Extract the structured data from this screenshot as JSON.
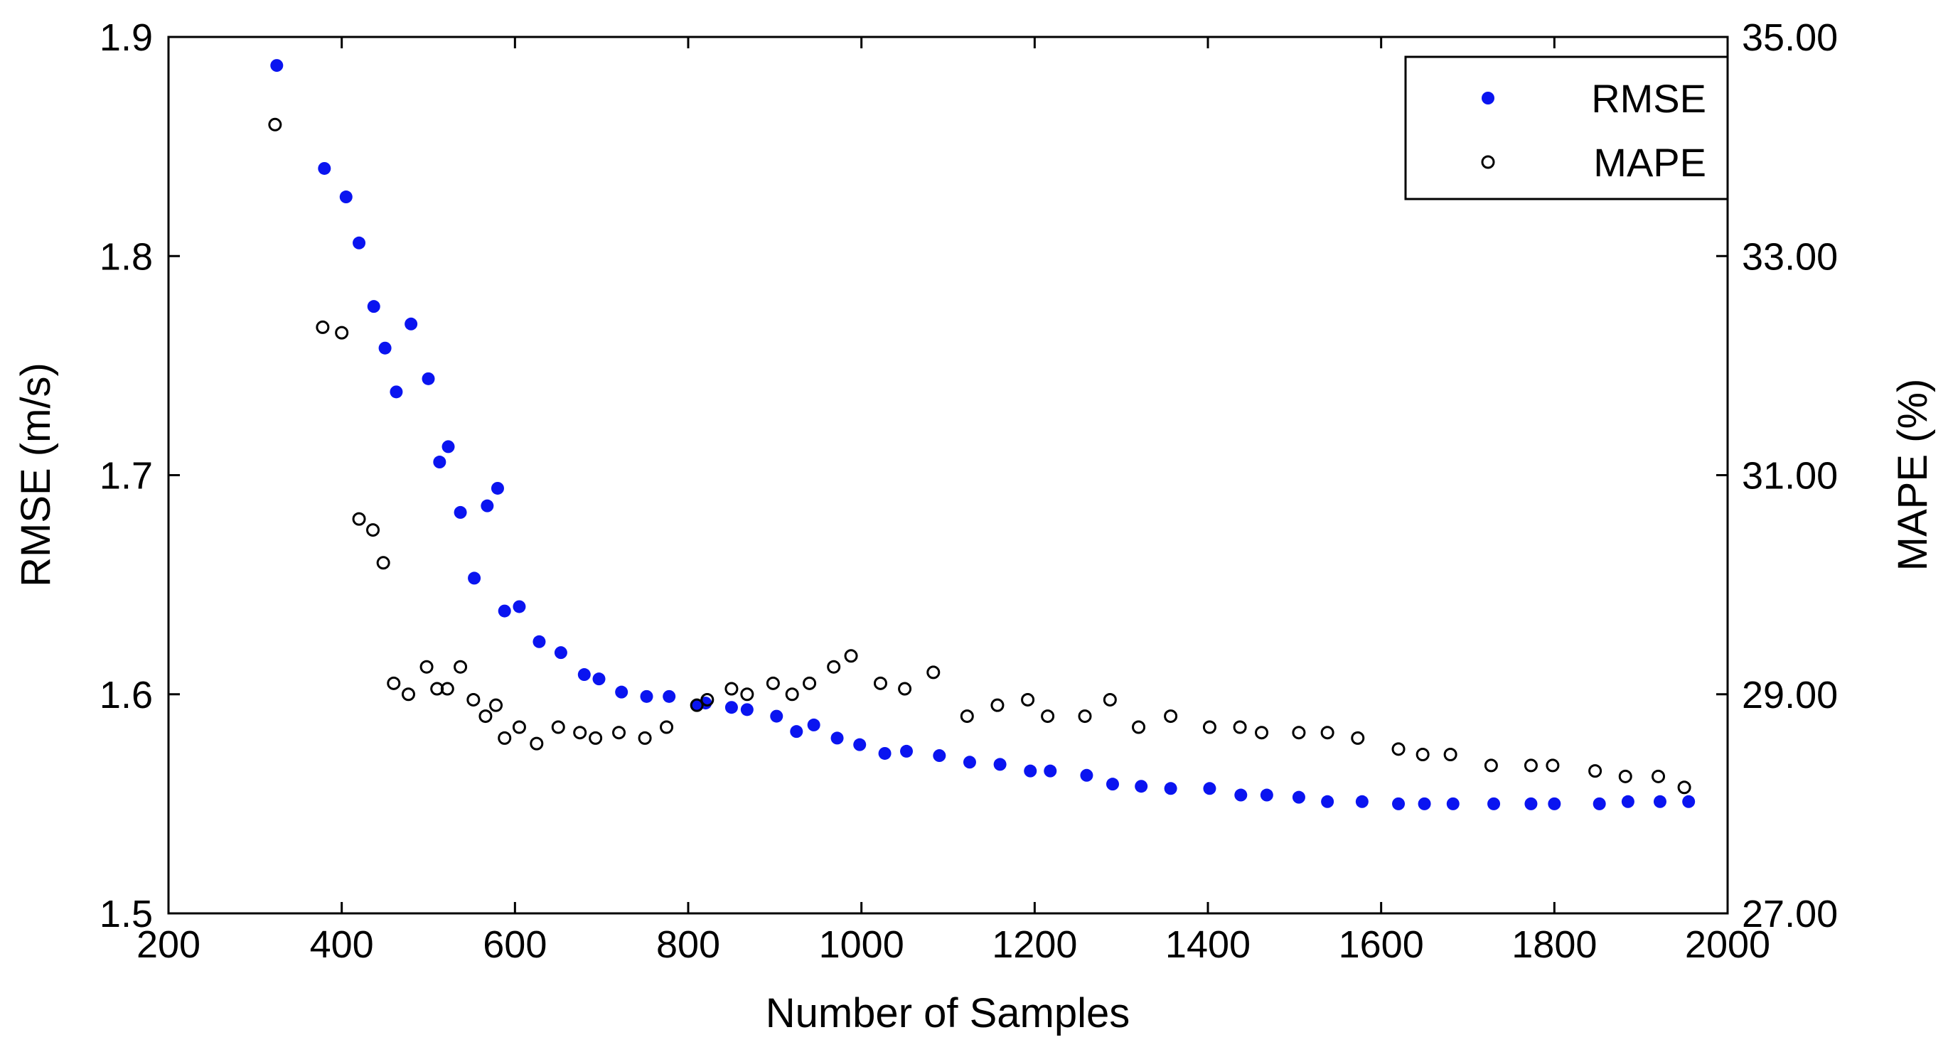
{
  "chart_data": {
    "type": "scatter",
    "title": "",
    "xlabel": "Number of Samples",
    "ylabel_left": "RMSE (m/s)",
    "ylabel_right": "MAPE (%)",
    "xlim": [
      200,
      2000
    ],
    "ylim_left": [
      1.5,
      1.9
    ],
    "ylim_right": [
      27,
      35
    ],
    "x_ticks": [
      "200",
      "400",
      "600",
      "800",
      "1000",
      "1200",
      "1400",
      "1600",
      "1800",
      "2000"
    ],
    "y_ticks_left": [
      "1.5",
      "1.6",
      "1.7",
      "1.8",
      "1.9"
    ],
    "y_ticks_right": [
      "27.00",
      "29.00",
      "31.00",
      "33.00",
      "35.00"
    ],
    "legend_position": "top-right",
    "series": [
      {
        "name": "RMSE",
        "axis": "left",
        "color": "#0a14f0",
        "marker": "filled-circle",
        "x": [
          325,
          380,
          405,
          420,
          437,
          450,
          463,
          480,
          500,
          513,
          523,
          537,
          553,
          568,
          580,
          588,
          605,
          628,
          653,
          680,
          697,
          723,
          752,
          778,
          810,
          820,
          850,
          868,
          902,
          925,
          945,
          972,
          998,
          1027,
          1052,
          1090,
          1125,
          1160,
          1195,
          1218,
          1260,
          1290,
          1323,
          1357,
          1402,
          1438,
          1468,
          1505,
          1538,
          1578,
          1620,
          1650,
          1683,
          1730,
          1773,
          1800,
          1852,
          1885,
          1922,
          1955
        ],
        "values": [
          1.887,
          1.84,
          1.827,
          1.806,
          1.777,
          1.758,
          1.738,
          1.769,
          1.744,
          1.706,
          1.713,
          1.683,
          1.653,
          1.686,
          1.694,
          1.638,
          1.64,
          1.624,
          1.619,
          1.609,
          1.607,
          1.601,
          1.599,
          1.599,
          1.595,
          1.596,
          1.594,
          1.593,
          1.59,
          1.583,
          1.586,
          1.58,
          1.577,
          1.573,
          1.574,
          1.572,
          1.569,
          1.568,
          1.565,
          1.565,
          1.563,
          1.559,
          1.558,
          1.557,
          1.557,
          1.554,
          1.554,
          1.553,
          1.551,
          1.551,
          1.55,
          1.55,
          1.55,
          1.55,
          1.55,
          1.55,
          1.55,
          1.551,
          1.551,
          1.551
        ]
      },
      {
        "name": "MAPE",
        "axis": "right",
        "color": "#000000",
        "marker": "open-circle",
        "x": [
          323,
          378,
          400,
          420,
          436,
          448,
          460,
          477,
          498,
          510,
          522,
          537,
          552,
          566,
          578,
          588,
          605,
          625,
          650,
          675,
          693,
          720,
          750,
          775,
          810,
          822,
          850,
          868,
          898,
          920,
          940,
          968,
          988,
          1022,
          1050,
          1083,
          1122,
          1157,
          1192,
          1215,
          1258,
          1287,
          1320,
          1357,
          1402,
          1437,
          1462,
          1505,
          1538,
          1573,
          1620,
          1648,
          1680,
          1727,
          1773,
          1798,
          1847,
          1882,
          1920,
          1950
        ],
        "values": [
          34.2,
          32.35,
          32.3,
          30.6,
          30.5,
          30.2,
          29.1,
          29.0,
          29.25,
          29.05,
          29.05,
          29.25,
          28.95,
          28.8,
          28.9,
          28.6,
          28.7,
          28.55,
          28.7,
          28.65,
          28.6,
          28.65,
          28.6,
          28.7,
          28.9,
          28.95,
          29.05,
          29.0,
          29.1,
          29.0,
          29.1,
          29.25,
          29.35,
          29.1,
          29.05,
          29.2,
          28.8,
          28.9,
          28.95,
          28.8,
          28.8,
          28.95,
          28.7,
          28.8,
          28.7,
          28.7,
          28.65,
          28.65,
          28.65,
          28.6,
          28.5,
          28.45,
          28.45,
          28.35,
          28.35,
          28.35,
          28.3,
          28.25,
          28.25,
          28.15
        ]
      }
    ]
  }
}
